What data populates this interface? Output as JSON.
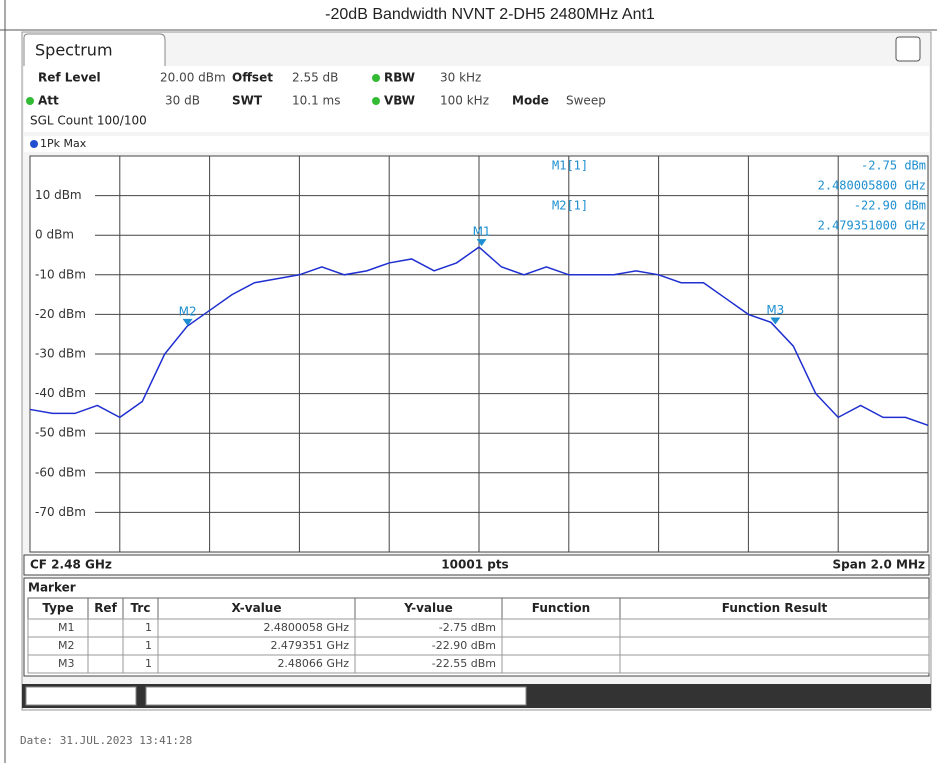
{
  "title": "-20dB Bandwidth NVNT 2-DH5 2480MHz Ant1",
  "tab": "Spectrum",
  "settings": [
    {
      "label": "Ref Level",
      "value": "20.00 dBm"
    },
    {
      "label": "Offset",
      "value": "2.55 dB"
    },
    {
      "label": "RBW",
      "value": "30 kHz"
    },
    {
      "label": "Att",
      "value": "30 dB"
    },
    {
      "label": "SWT",
      "value": "10.1 ms"
    },
    {
      "label": "VBW",
      "value": "100 kHz"
    },
    {
      "label": "Mode",
      "value": "Sweep"
    }
  ],
  "sgl_count": "SGL Count 100/100",
  "readouts": [
    {
      "name": "M1[1]",
      "level": "-2.75 dBm",
      "freq": "2.480005800 GHz"
    },
    {
      "name": "M2[1]",
      "level": "-22.90 dBm",
      "freq": "2.479351000 GHz"
    }
  ],
  "footer": {
    "left": "CF 2.48 GHz",
    "center": "10001 pts",
    "right": "Span 2.0 MHz"
  },
  "table": {
    "title": "Marker",
    "header": [
      "Type",
      "Ref",
      "Trc",
      "X-value",
      "Y-value",
      "Function",
      "Function Result"
    ],
    "rows": [
      [
        "M1",
        "",
        "1",
        "2.4800058 GHz",
        "-2.75 dBm",
        "",
        ""
      ],
      [
        "M2",
        "",
        "1",
        "2.479351 GHz",
        "-22.90 dBm",
        "",
        ""
      ],
      [
        "M3",
        "",
        "1",
        "2.48066 GHz",
        "-22.55 dBm",
        "",
        ""
      ]
    ]
  },
  "date": "Date: 31.JUL.2023  13:41:28",
  "chart_data": {
    "type": "line",
    "x": [
      2.479,
      2.47905,
      2.4791,
      2.47915,
      2.4792,
      2.47925,
      2.4793,
      2.47935,
      2.4794,
      2.47945,
      2.4795,
      2.47955,
      2.4796,
      2.47965,
      2.4797,
      2.47975,
      2.4798,
      2.47985,
      2.4799,
      2.47995,
      2.48,
      2.48005,
      2.4801,
      2.48015,
      2.4802,
      2.48025,
      2.4803,
      2.48035,
      2.4804,
      2.48045,
      2.4805,
      2.48055,
      2.4806,
      2.48065,
      2.4807,
      2.48075,
      2.4808,
      2.48085,
      2.4809,
      2.48095,
      2.481
    ],
    "series": [
      {
        "name": "1Pk Max",
        "color": "#1f2fd0",
        "values": [
          -44,
          -45,
          -45,
          -43,
          -46,
          -42,
          -30,
          -23,
          -19,
          -15,
          -12,
          -11,
          -10,
          -8,
          -10,
          -9,
          -7,
          -6,
          -9,
          -7,
          -3,
          -8,
          -10,
          -8,
          -10,
          -10,
          -10,
          -9,
          -10,
          -12,
          -12,
          -16,
          -20,
          -22,
          -28,
          -40,
          -46,
          -43,
          -46,
          -46,
          -48
        ]
      }
    ],
    "markers": [
      {
        "label": "M1",
        "x": 2.4800058,
        "y": -2.75
      },
      {
        "label": "M2",
        "x": 2.479351,
        "y": -22.9
      },
      {
        "label": "M3",
        "x": 2.48066,
        "y": -22.55
      }
    ],
    "xlim": [
      2.479,
      2.481
    ],
    "ylim": [
      -80,
      20
    ],
    "yticks": [
      {
        "value": 10,
        "label": "10 dBm"
      },
      {
        "value": 0,
        "label": "0 dBm"
      },
      {
        "value": -10,
        "label": "-10 dBm"
      },
      {
        "value": -20,
        "label": "-20 dBm"
      },
      {
        "value": -30,
        "label": "-30 dBm"
      },
      {
        "value": -40,
        "label": "-40 dBm"
      },
      {
        "value": -50,
        "label": "-50 dBm"
      },
      {
        "value": -60,
        "label": "-60 dBm"
      },
      {
        "value": -70,
        "label": "-70 dBm"
      }
    ],
    "grid": true
  }
}
